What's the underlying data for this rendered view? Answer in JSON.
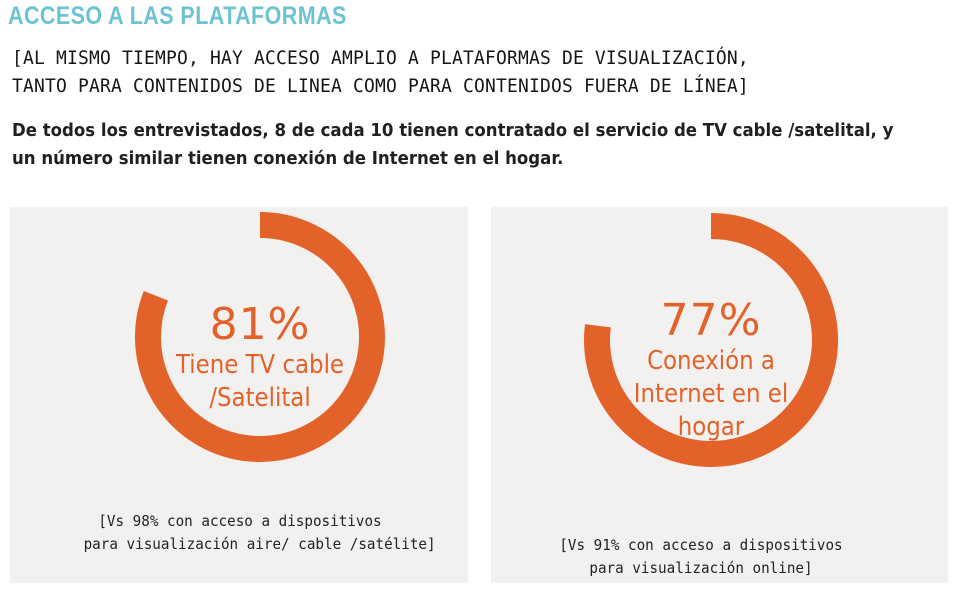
{
  "header": {
    "section_title": "ACCESO A LAS PLATAFORMAS",
    "headline_lines": [
      "[AL MISMO TIEMPO, HAY ACCESO AMPLIO A PLATAFORMAS DE VISUALIZACIÓN,",
      "TANTO PARA CONTENIDOS DE LINEA COMO PARA CONTENIDOS FUERA DE LÍNEA]"
    ],
    "intro_lines": [
      "De todos los entrevistados, 8 de cada 10 tienen contratado el servicio de TV cable /satelital, y",
      "un número similar tienen conexión de Internet en el hogar."
    ]
  },
  "colors": {
    "title": "#6cc3d1",
    "accent": "#e3622a",
    "panel_bg": "#f2f1f0"
  },
  "chart_data": [
    {
      "type": "pie",
      "value_label": "81%",
      "value": 81,
      "label_lines": [
        "Tiene TV cable",
        "/Satelital"
      ],
      "note_lines": [
        "[Vs 98% con acceso a dispositivos",
        "para visualización aire/ cable /satélite]"
      ]
    },
    {
      "type": "pie",
      "value_label": "77%",
      "value": 77,
      "label_lines": [
        "Conexión a",
        "Internet en el",
        "hogar"
      ],
      "note_lines": [
        "[Vs 91% con acceso a dispositivos",
        "para visualización online]"
      ]
    }
  ]
}
